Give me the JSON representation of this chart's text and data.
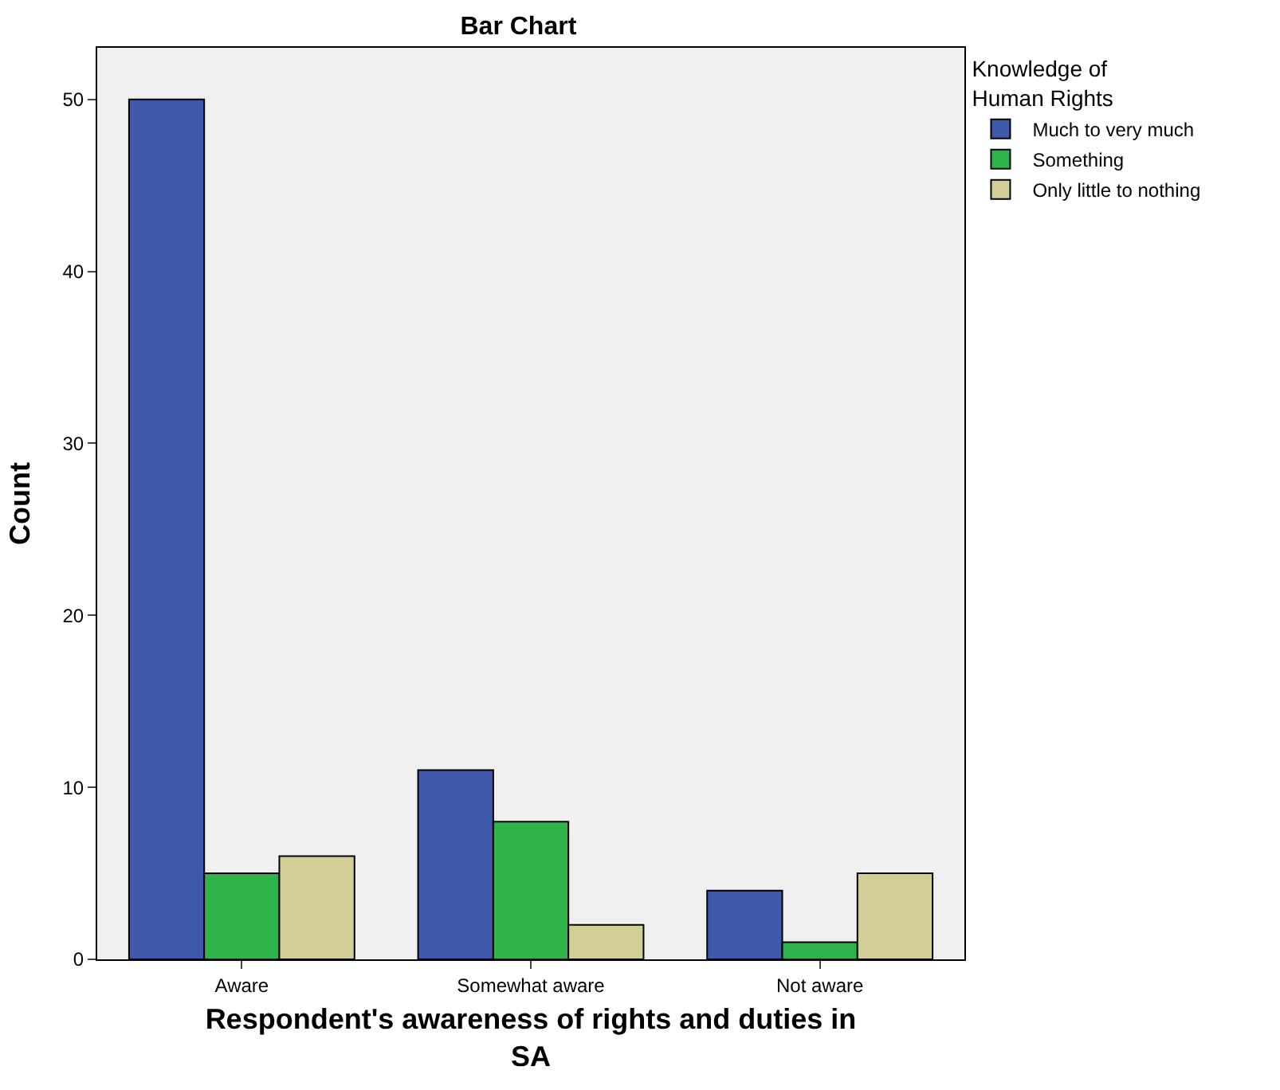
{
  "chart_data": {
    "type": "bar",
    "title": "Bar Chart",
    "xlabel": "Respondent's awareness of rights and duties in SA",
    "ylabel": "Count",
    "legend_title": "Knowledge of Human Rights",
    "categories": [
      "Aware",
      "Somewhat aware",
      "Not aware"
    ],
    "series": [
      {
        "name": "Much to very much",
        "color": "#3e58ac",
        "values": [
          50,
          11,
          4
        ]
      },
      {
        "name": "Something",
        "color": "#2fb44b",
        "values": [
          5,
          8,
          1
        ]
      },
      {
        "name": "Only little to nothing",
        "color": "#d3ce97",
        "values": [
          6,
          2,
          5
        ]
      }
    ],
    "ylim": [
      0,
      53
    ],
    "yticks": [
      0,
      10,
      20,
      30,
      40,
      50
    ],
    "grid": false,
    "legend": "top right"
  }
}
